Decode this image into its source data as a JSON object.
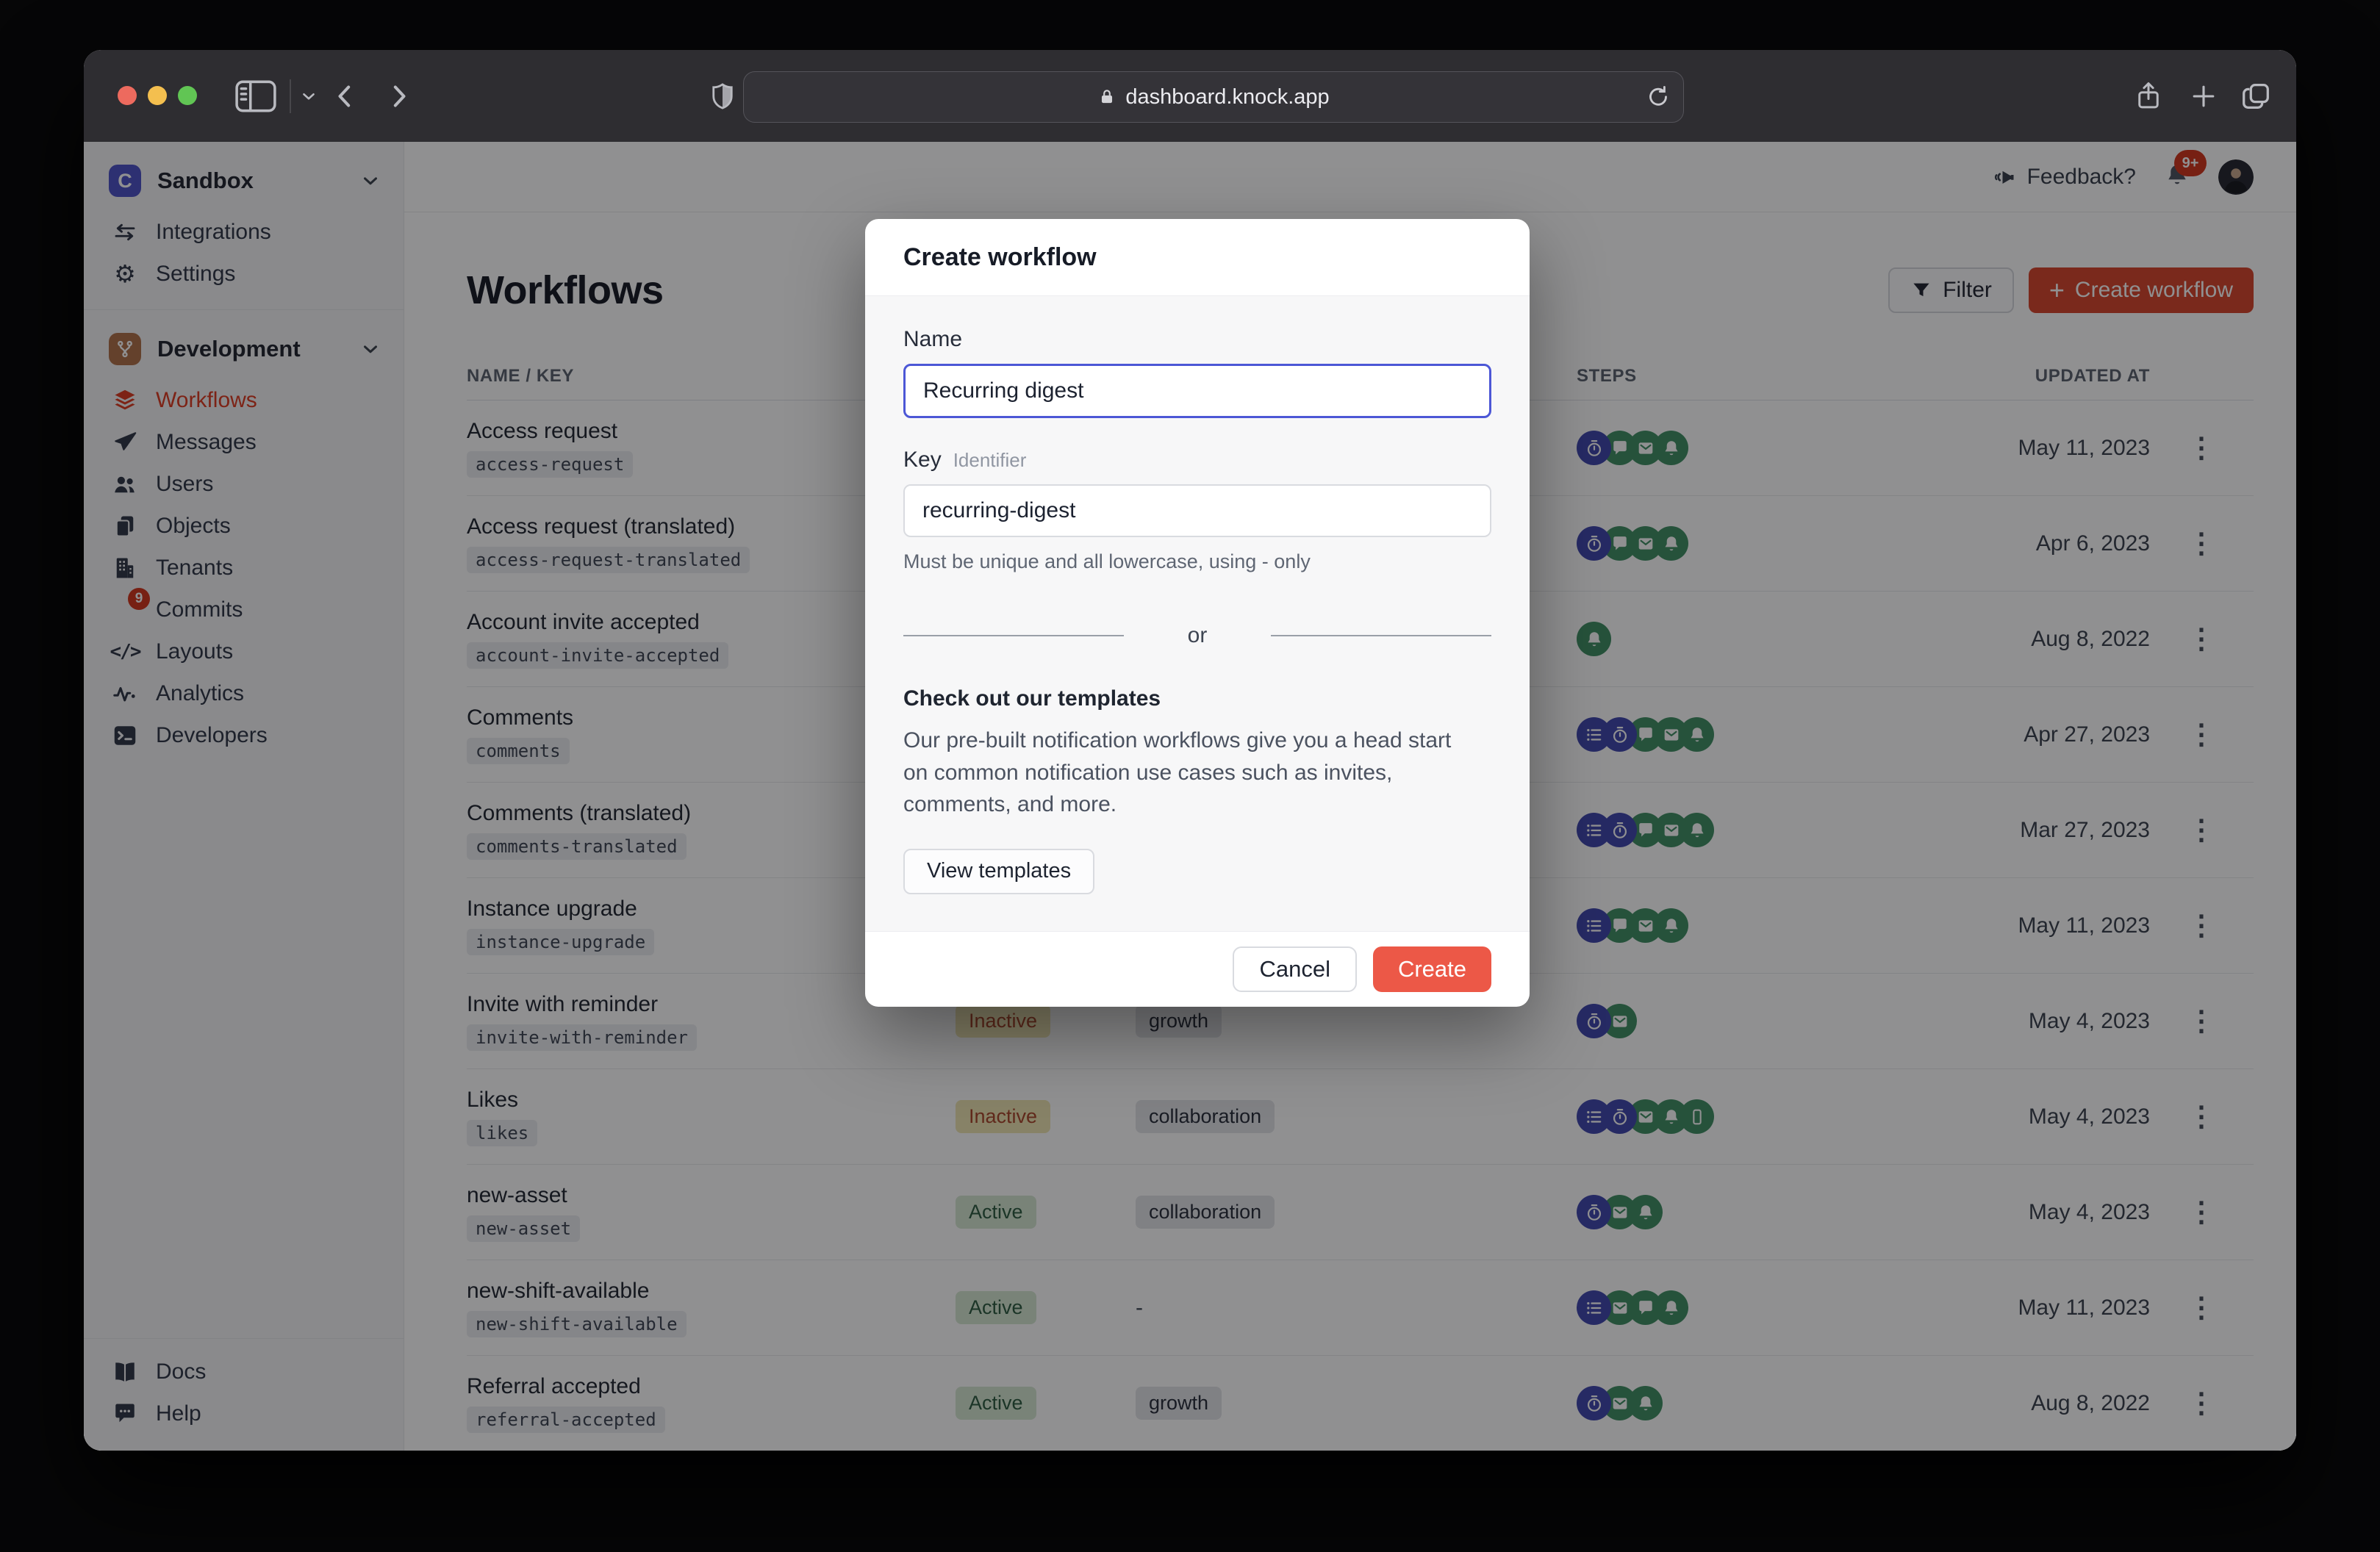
{
  "browser": {
    "url": "dashboard.knock.app"
  },
  "topbar": {
    "feedback": "Feedback?",
    "notification_badge": "9+"
  },
  "sidebar": {
    "workspace": {
      "name": "Sandbox",
      "initial": "C"
    },
    "top_items": [
      {
        "label": "Integrations",
        "icon": "integrations-icon"
      },
      {
        "label": "Settings",
        "icon": "settings-icon"
      }
    ],
    "environment": {
      "name": "Development"
    },
    "dev_items": [
      {
        "label": "Workflows",
        "icon": "workflows-icon",
        "active": true
      },
      {
        "label": "Messages",
        "icon": "messages-icon"
      },
      {
        "label": "Users",
        "icon": "users-icon"
      },
      {
        "label": "Objects",
        "icon": "objects-icon"
      },
      {
        "label": "Tenants",
        "icon": "tenants-icon"
      },
      {
        "label": "Commits",
        "icon": "commits-icon",
        "badge": "9"
      },
      {
        "label": "Layouts",
        "icon": "layouts-icon"
      },
      {
        "label": "Analytics",
        "icon": "analytics-icon"
      },
      {
        "label": "Developers",
        "icon": "developers-icon"
      }
    ],
    "bottom_items": [
      {
        "label": "Docs",
        "icon": "docs-icon"
      },
      {
        "label": "Help",
        "icon": "help-icon"
      }
    ]
  },
  "page": {
    "title": "Workflows",
    "filter_button": "Filter",
    "create_button": "Create workflow"
  },
  "table": {
    "headers": {
      "name_key": "NAME / KEY",
      "steps": "STEPS",
      "updated_at": "UPDATED AT"
    },
    "rows": [
      {
        "name": "Access request",
        "key": "access-request",
        "status": null,
        "category": null,
        "steps": [
          "delay",
          "chat",
          "email",
          "bell"
        ],
        "updated": "May 11, 2023"
      },
      {
        "name": "Access request (translated)",
        "key": "access-request-translated",
        "status": null,
        "category": null,
        "steps": [
          "delay",
          "chat",
          "email",
          "bell"
        ],
        "updated": "Apr 6, 2023"
      },
      {
        "name": "Account invite accepted",
        "key": "account-invite-accepted",
        "status": null,
        "category": null,
        "steps": [
          "bell"
        ],
        "updated": "Aug 8, 2022"
      },
      {
        "name": "Comments",
        "key": "comments",
        "status": null,
        "category": null,
        "steps": [
          "batch",
          "delay",
          "chat",
          "email",
          "bell"
        ],
        "updated": "Apr 27, 2023"
      },
      {
        "name": "Comments (translated)",
        "key": "comments-translated",
        "status": null,
        "category": null,
        "steps": [
          "batch",
          "delay",
          "chat",
          "email",
          "bell"
        ],
        "updated": "Mar 27, 2023"
      },
      {
        "name": "Instance upgrade",
        "key": "instance-upgrade",
        "status": null,
        "category": null,
        "steps": [
          "batch",
          "chat",
          "email",
          "bell"
        ],
        "updated": "May 11, 2023"
      },
      {
        "name": "Invite with reminder",
        "key": "invite-with-reminder",
        "status": "Inactive",
        "category": "growth",
        "steps": [
          "delay",
          "email"
        ],
        "updated": "May 4, 2023"
      },
      {
        "name": "Likes",
        "key": "likes",
        "status": "Inactive",
        "category": "collaboration",
        "steps": [
          "batch",
          "delay",
          "email",
          "bell",
          "phone"
        ],
        "updated": "May 4, 2023"
      },
      {
        "name": "new-asset",
        "key": "new-asset",
        "status": "Active",
        "category": "collaboration",
        "steps": [
          "delay",
          "email",
          "bell"
        ],
        "updated": "May 4, 2023"
      },
      {
        "name": "new-shift-available",
        "key": "new-shift-available",
        "status": "Active",
        "category": "-",
        "steps": [
          "batch",
          "email",
          "chat",
          "bell"
        ],
        "updated": "May 11, 2023"
      },
      {
        "name": "Referral accepted",
        "key": "referral-accepted",
        "status": "Active",
        "category": "growth",
        "steps": [
          "delay",
          "email",
          "bell"
        ],
        "updated": "Aug 8, 2022"
      }
    ]
  },
  "modal": {
    "title": "Create workflow",
    "name_label": "Name",
    "name_value": "Recurring digest",
    "key_label": "Key",
    "key_hint": "Identifier",
    "key_value": "recurring-digest",
    "key_help": "Must be unique and all lowercase, using - only",
    "divider_label": "or",
    "templates_heading": "Check out our templates",
    "templates_body": "Our pre-built notification workflows give you a head start on common notification use cases such as invites, comments, and more.",
    "view_templates_button": "View templates",
    "cancel_button": "Cancel",
    "create_button": "Create"
  },
  "colors": {
    "accent_red": "#d8442b",
    "modal_create_red": "#ec5847",
    "step_blue": "#3f46ad",
    "step_green": "#3f8f63",
    "focus_blue": "#4c57d6",
    "inactive_bg": "#efe5b2",
    "inactive_text": "#a9462a",
    "active_bg": "#d6e7d2",
    "active_text": "#2b5a3f",
    "traffic_red": "#ed6a5e",
    "traffic_yellow": "#f4bf4f",
    "traffic_green": "#61c554"
  }
}
